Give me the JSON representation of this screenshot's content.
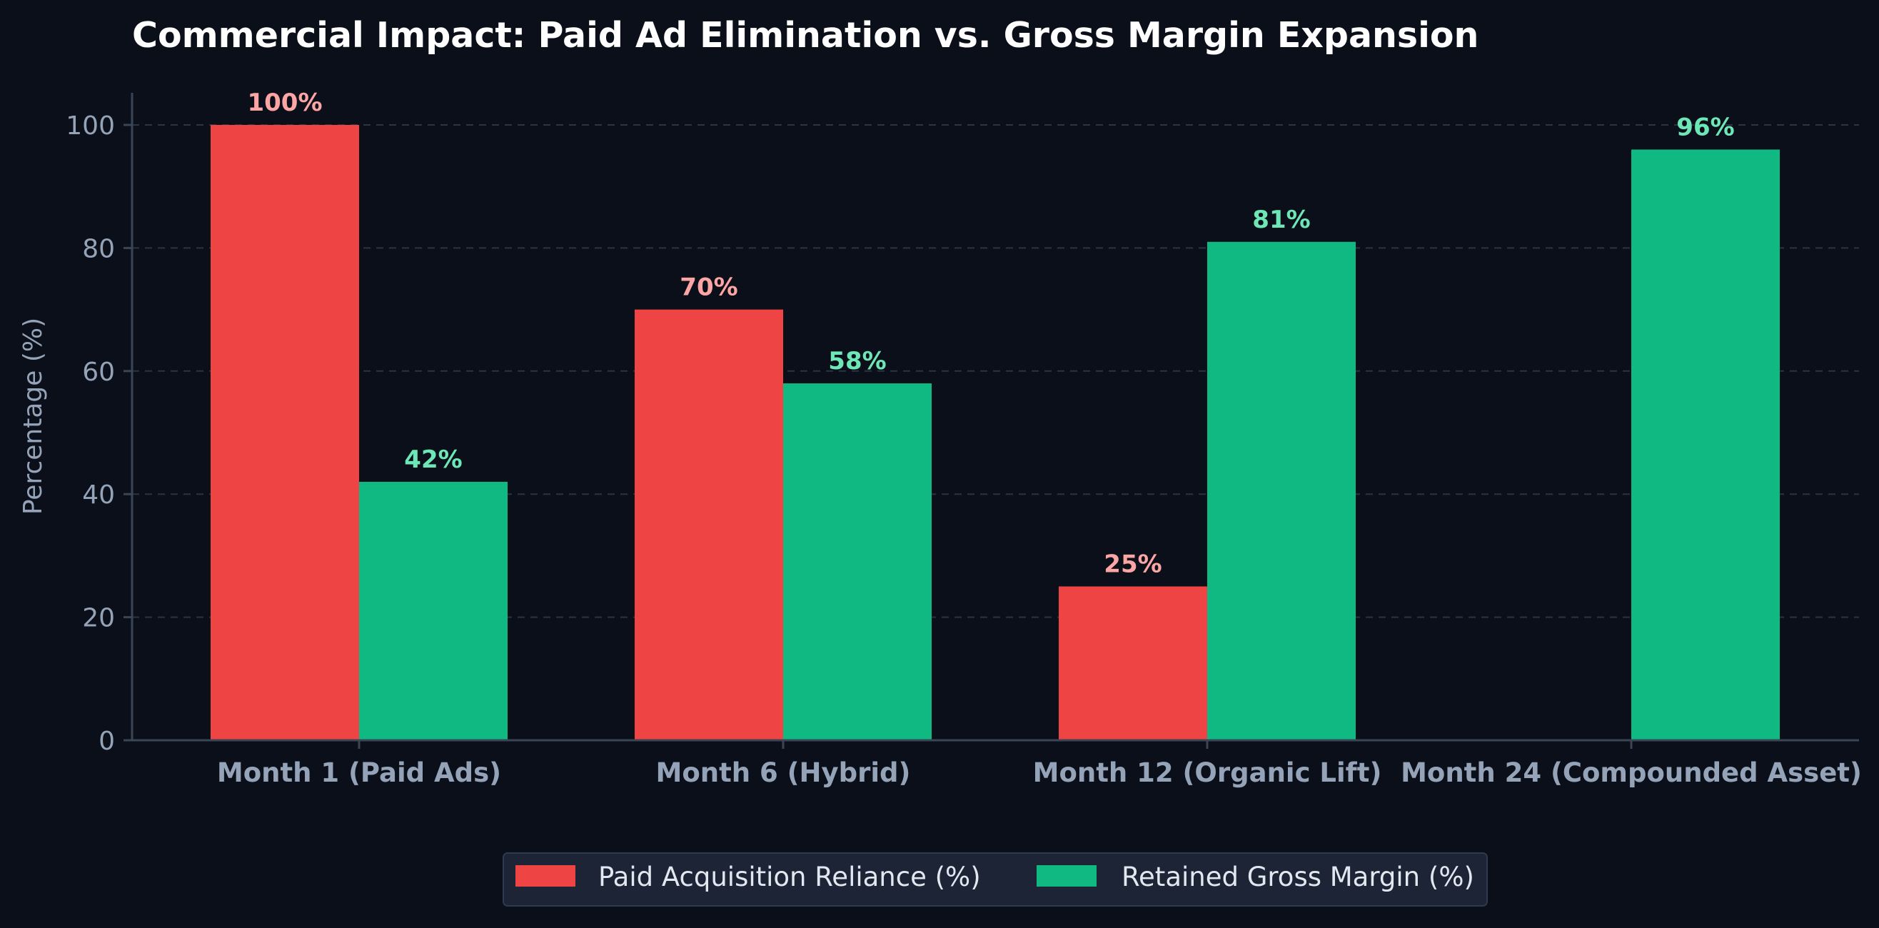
{
  "chart_data": {
    "type": "bar",
    "title": "Commercial Impact: Paid Ad Elimination vs. Gross Margin Expansion",
    "xlabel": "",
    "ylabel": "Percentage (%)",
    "ylim": [
      0,
      105
    ],
    "yticks": [
      0,
      20,
      40,
      60,
      80,
      100
    ],
    "grid": true,
    "legend_position": "bottom-center",
    "categories": [
      "Month 1 (Paid Ads)",
      "Month 6 (Hybrid)",
      "Month 12 (Organic Lift)",
      "Month 24 (Compounded Asset)"
    ],
    "series": [
      {
        "name": "Paid Acquisition Reliance (%)",
        "color": "#ef4444",
        "label_color": "#fca5a5",
        "values": [
          100,
          70,
          25,
          0
        ],
        "labels": [
          "100%",
          "70%",
          "25%",
          ""
        ]
      },
      {
        "name": "Retained Gross Margin (%)",
        "color": "#10b981",
        "label_color": "#6ee7b7",
        "values": [
          42,
          58,
          81,
          96
        ],
        "labels": [
          "42%",
          "58%",
          "81%",
          "96%"
        ]
      }
    ]
  }
}
